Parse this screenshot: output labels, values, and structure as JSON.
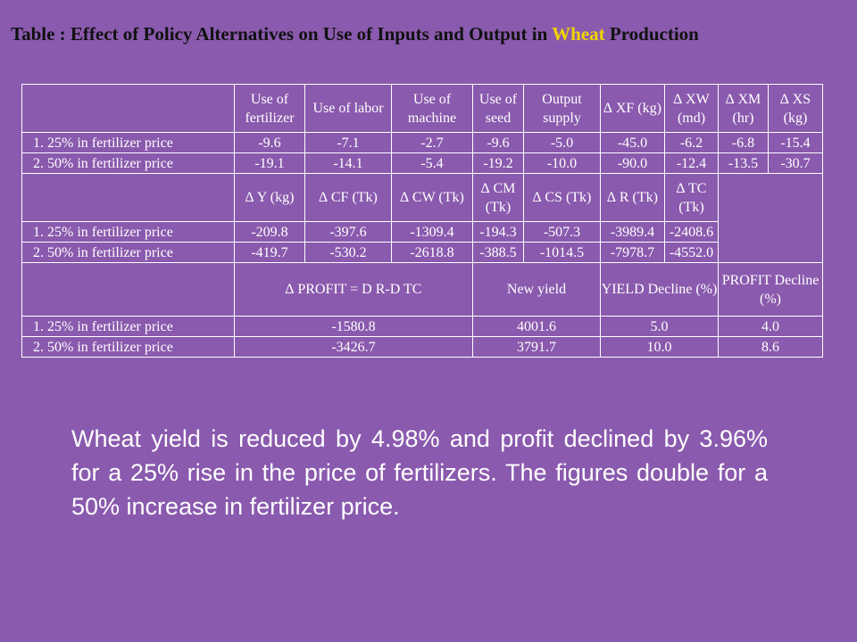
{
  "title": {
    "prefix": "Table : Effect of Policy Alternatives on Use of Inputs and Output in ",
    "highlight": "Wheat",
    "suffix": " Production"
  },
  "colors": {
    "background": "#8a5aae",
    "highlight": "#f0d400",
    "grid": "#ffffff"
  },
  "table": {
    "section1": {
      "headers": [
        "Use of fertilizer",
        "Use of labor",
        "Use of machine",
        "Use of seed",
        "Output supply",
        "∆ XF (kg)",
        "∆ XW (md)",
        "∆ XM (hr)",
        "∆ XS (kg)"
      ],
      "rows": [
        {
          "label": "1. 25% in fertilizer price",
          "values": [
            "-9.6",
            "-7.1",
            "-2.7",
            "-9.6",
            "-5.0",
            "-45.0",
            "-6.2",
            "-6.8",
            "-15.4"
          ]
        },
        {
          "label": "2. 50% in fertilizer price",
          "values": [
            "-19.1",
            "-14.1",
            "-5.4",
            "-19.2",
            "-10.0",
            "-90.0",
            "-12.4",
            "-13.5",
            "-30.7"
          ]
        }
      ]
    },
    "section2": {
      "headers": [
        "∆ Y (kg)",
        "∆ CF (Tk)",
        "∆ CW (Tk)",
        "∆ CM (Tk)",
        "∆ CS (Tk)",
        "∆ R (Tk)",
        "∆ TC (Tk)"
      ],
      "rows": [
        {
          "label": "1. 25% in fertilizer price",
          "values": [
            "-209.8",
            "-397.6",
            "-1309.4",
            "-194.3",
            "-507.3",
            "-3989.4",
            "-2408.6"
          ]
        },
        {
          "label": "2. 50% in fertilizer price",
          "values": [
            "-419.7",
            "-530.2",
            "-2618.8",
            "-388.5",
            "-1014.5",
            "-7978.7",
            "-4552.0"
          ]
        }
      ]
    },
    "section3": {
      "headers": [
        "∆ PROFIT = D R-D TC",
        "New yield",
        "YIELD Decline (%)",
        "PROFIT Decline (%)"
      ],
      "rows": [
        {
          "label": "1. 25% in fertilizer price",
          "values": [
            "-1580.8",
            "4001.6",
            "5.0",
            "4.0"
          ]
        },
        {
          "label": "2. 50% in fertilizer price",
          "values": [
            "-3426.7",
            "3791.7",
            "10.0",
            "8.6"
          ]
        }
      ]
    }
  },
  "paragraph": "Wheat yield is reduced by 4.98% and profit declined by 3.96% for a 25% rise in the price of fertilizers. The figures double for a 50% increase in fertilizer price."
}
